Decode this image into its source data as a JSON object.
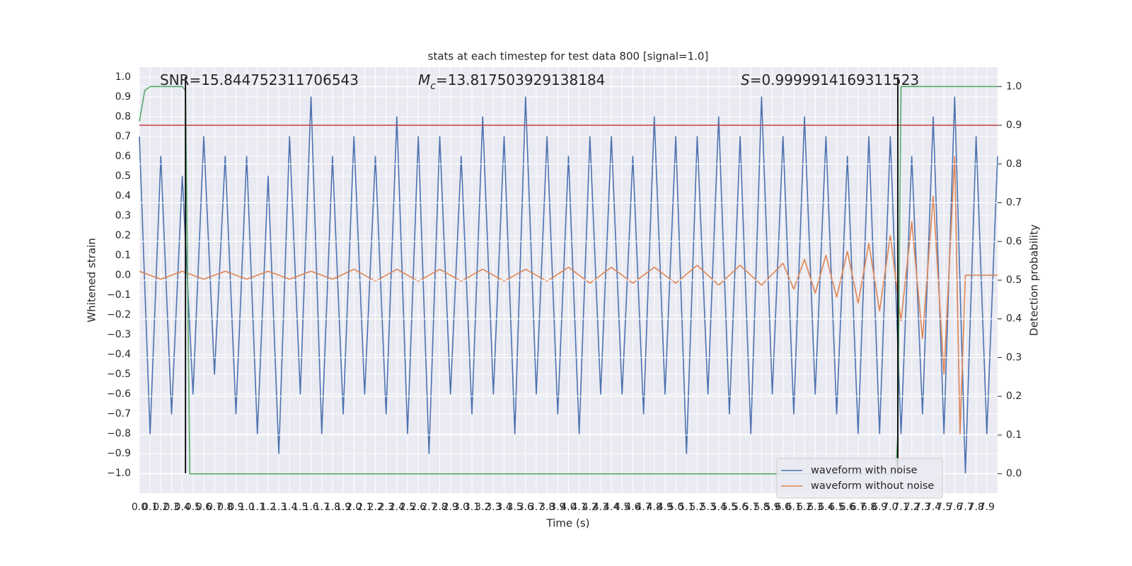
{
  "chart_data": {
    "type": "line",
    "title": "stats at each timestep for test data 800 [signal=1.0]",
    "xlabel": "Time (s)",
    "ylabel": "Whitened strain",
    "y2label": "Detection probability",
    "grid": true,
    "legend": "lower right",
    "xlim": [
      0,
      8.0
    ],
    "ylim": [
      -1.1,
      1.05
    ],
    "y2lim": [
      -0.05,
      1.05
    ],
    "xticks": [
      {
        "value": 0,
        "label": "0.0"
      },
      0.1,
      0.2,
      0.3,
      0.4,
      0.5,
      0.6,
      0.7,
      0.8,
      0.9,
      {
        "value": 1,
        "label": "1.0"
      },
      1.1,
      1.2,
      1.3,
      1.4,
      1.5,
      1.6,
      1.7,
      1.8,
      1.9,
      {
        "value": 2,
        "label": "2.0"
      },
      2.1,
      2.2,
      2.3,
      2.4,
      2.5,
      2.6,
      2.7,
      2.8,
      2.9,
      {
        "value": 3,
        "label": "3.0"
      },
      3.1,
      3.2,
      3.3,
      3.4,
      3.5,
      3.6,
      3.7,
      3.8,
      3.9,
      {
        "value": 4,
        "label": "4.0"
      },
      4.1,
      4.2,
      4.3,
      4.4,
      4.5,
      4.6,
      4.7,
      4.8,
      4.9,
      {
        "value": 5,
        "label": "5.0"
      },
      5.1,
      5.2,
      5.3,
      5.4,
      5.5,
      5.6,
      5.7,
      5.8,
      5.9,
      {
        "value": 6,
        "label": "6.0"
      },
      6.1,
      6.2,
      6.3,
      6.4,
      6.5,
      6.6,
      6.7,
      6.8,
      6.9,
      {
        "value": 7,
        "label": "7.0"
      },
      7.1,
      7.2,
      7.3,
      7.4,
      7.5,
      7.6,
      7.7,
      7.8,
      7.9
    ],
    "yticks": [
      {
        "value": -1,
        "label": "−1.0"
      },
      {
        "value": -0.9,
        "label": "−0.9"
      },
      {
        "value": -0.8,
        "label": "−0.8"
      },
      {
        "value": -0.7,
        "label": "−0.7"
      },
      {
        "value": -0.6,
        "label": "−0.6"
      },
      {
        "value": -0.5,
        "label": "−0.5"
      },
      {
        "value": -0.4,
        "label": "−0.4"
      },
      {
        "value": -0.3,
        "label": "−0.3"
      },
      {
        "value": -0.2,
        "label": "−0.2"
      },
      {
        "value": -0.1,
        "label": "−0.1"
      },
      {
        "value": 0,
        "label": "0.0"
      },
      0.1,
      0.2,
      0.3,
      0.4,
      0.5,
      0.6,
      0.7,
      0.8,
      0.9,
      {
        "value": 1,
        "label": "1.0"
      }
    ],
    "y2ticks": [
      {
        "value": 0,
        "label": "0.0"
      },
      0.1,
      0.2,
      0.3,
      0.4,
      0.5,
      0.6,
      0.7,
      0.8,
      0.9,
      {
        "value": 1,
        "label": "1.0"
      }
    ],
    "series": [
      {
        "name": "waveform with noise",
        "color": "#4c72b0",
        "x": [
          0,
          0.1,
          0.2,
          0.3,
          0.4,
          0.5,
          0.6,
          0.7,
          0.8,
          0.9,
          1.0,
          1.1,
          1.2,
          1.3,
          1.4,
          1.5,
          1.6,
          1.7,
          1.8,
          1.9,
          2.0,
          2.1,
          2.2,
          2.3,
          2.4,
          2.5,
          2.6,
          2.7,
          2.8,
          2.9,
          3.0,
          3.1,
          3.2,
          3.3,
          3.4,
          3.5,
          3.6,
          3.7,
          3.8,
          3.9,
          4.0,
          4.1,
          4.2,
          4.3,
          4.4,
          4.5,
          4.6,
          4.7,
          4.8,
          4.9,
          5.0,
          5.1,
          5.2,
          5.3,
          5.4,
          5.5,
          5.6,
          5.7,
          5.8,
          5.9,
          6.0,
          6.1,
          6.2,
          6.3,
          6.4,
          6.5,
          6.6,
          6.7,
          6.8,
          6.9,
          7.0,
          7.1,
          7.2,
          7.3,
          7.4,
          7.5,
          7.6,
          7.7,
          7.8,
          7.9,
          8.0
        ],
        "values": [
          0.7,
          -0.8,
          0.6,
          -0.7,
          0.5,
          -0.6,
          0.7,
          -0.5,
          0.6,
          -0.7,
          0.6,
          -0.8,
          0.5,
          -0.9,
          0.7,
          -0.6,
          0.9,
          -0.8,
          0.6,
          -0.7,
          0.7,
          -0.6,
          0.6,
          -0.7,
          0.8,
          -0.8,
          0.7,
          -0.9,
          0.7,
          -0.6,
          0.6,
          -0.7,
          0.8,
          -0.6,
          0.7,
          -0.8,
          0.9,
          -0.6,
          0.7,
          -0.7,
          0.6,
          -0.8,
          0.7,
          -0.6,
          0.7,
          -0.6,
          0.6,
          -0.7,
          0.8,
          -0.6,
          0.7,
          -0.9,
          0.7,
          -0.6,
          0.8,
          -0.7,
          0.7,
          -0.8,
          0.9,
          -0.6,
          0.7,
          -0.7,
          0.8,
          -0.6,
          0.7,
          -0.7,
          0.6,
          -0.8,
          0.7,
          -0.8,
          0.7,
          -0.8,
          0.6,
          -0.7,
          0.8,
          -0.8,
          0.9,
          -1.0,
          0.7,
          -0.8,
          0.6
        ]
      },
      {
        "name": "waveform without noise",
        "color": "#dd8452",
        "x": [
          0,
          0.2,
          0.4,
          0.6,
          0.8,
          1.0,
          1.2,
          1.4,
          1.6,
          1.8,
          2.0,
          2.2,
          2.4,
          2.6,
          2.8,
          3.0,
          3.2,
          3.4,
          3.6,
          3.8,
          4.0,
          4.2,
          4.4,
          4.6,
          4.8,
          5.0,
          5.2,
          5.4,
          5.6,
          5.8,
          6.0,
          6.1,
          6.2,
          6.3,
          6.4,
          6.5,
          6.6,
          6.7,
          6.8,
          6.9,
          7.0,
          7.1,
          7.2,
          7.3,
          7.4,
          7.5,
          7.6,
          7.65,
          7.7,
          8.0
        ],
        "values": [
          0.02,
          -0.02,
          0.02,
          -0.02,
          0.02,
          -0.02,
          0.02,
          -0.02,
          0.02,
          -0.02,
          0.03,
          -0.03,
          0.03,
          -0.03,
          0.03,
          -0.03,
          0.03,
          -0.03,
          0.03,
          -0.03,
          0.04,
          -0.04,
          0.04,
          -0.04,
          0.04,
          -0.04,
          0.05,
          -0.05,
          0.05,
          -0.05,
          0.06,
          -0.07,
          0.08,
          -0.09,
          0.1,
          -0.11,
          0.12,
          -0.14,
          0.16,
          -0.18,
          0.2,
          -0.23,
          0.27,
          -0.32,
          0.4,
          -0.5,
          0.6,
          -0.8,
          0.0,
          0.0
        ]
      },
      {
        "color": "#55a868",
        "axis": "y2",
        "x": [
          0,
          0.05,
          0.1,
          0.2,
          0.4,
          0.43,
          0.47,
          0.5,
          7.05,
          7.07,
          7.1,
          7.2,
          8.0
        ],
        "values": [
          0.91,
          0.99,
          1.0,
          1.0,
          1.0,
          0.99,
          0.0,
          0.0,
          0.0,
          0.1,
          1.0,
          1.0,
          1.0
        ]
      }
    ],
    "hlines": [
      {
        "value": 0.9,
        "color": "#c44e52",
        "axis": "y2"
      }
    ],
    "vlines": {
      "x": [
        0.43,
        7.07
      ],
      "ymin": -1.0,
      "ymax": 1.0,
      "color": "#000000"
    },
    "annotations": [
      {
        "text": "SNR=15.844752311706543"
      },
      {
        "symbol": "M",
        "subscript": "c",
        "text": "=13.817503929138184"
      },
      {
        "symbol": "S",
        "text": "=0.9999914169311523"
      }
    ]
  }
}
